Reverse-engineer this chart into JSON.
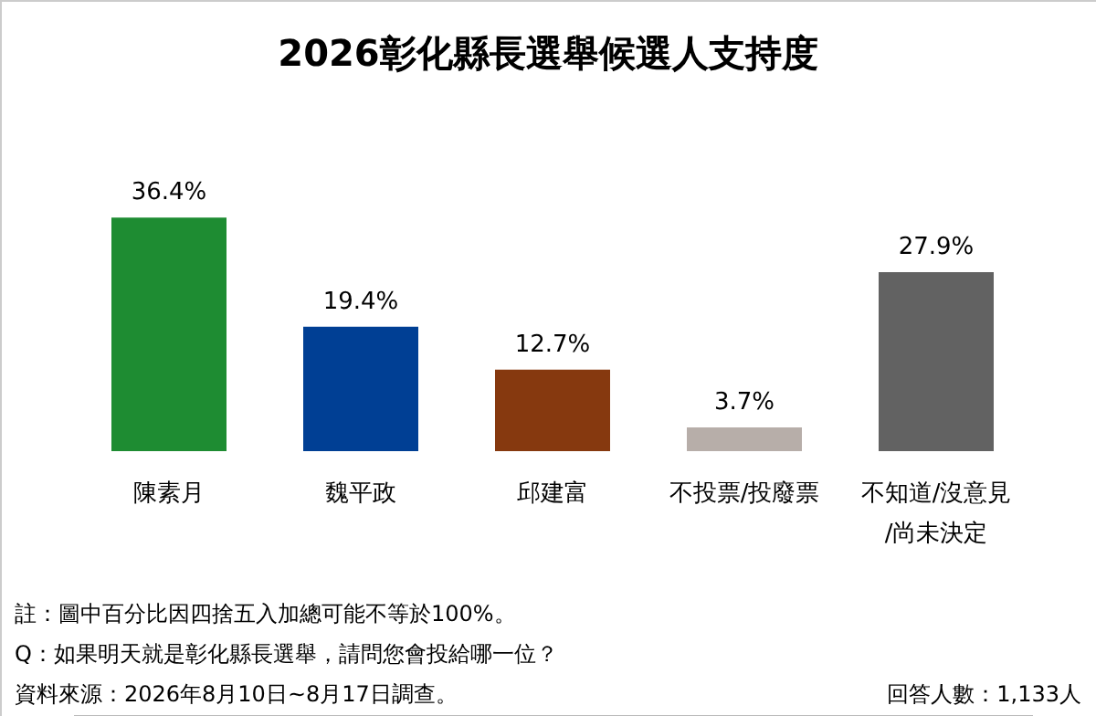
{
  "chart_data": {
    "type": "bar",
    "title": "2026彰化縣長選舉候選人支持度",
    "categories": [
      "陳素月",
      "魏平政",
      "邱建富",
      "不投票/投廢票",
      "不知道/沒意見/尚未決定"
    ],
    "values": [
      36.4,
      19.4,
      12.7,
      3.7,
      27.9
    ],
    "colors": [
      "#1e8c32",
      "#003f94",
      "#86390f",
      "#b7aea9",
      "#626262"
    ],
    "value_labels": [
      "36.4%",
      "19.4%",
      "12.7%",
      "3.7%",
      "27.9%"
    ],
    "annotations": [
      "註：圖中百分比因四捨五入加總可能不等於100%。",
      "Q：如果明天就是彰化縣長選舉，請問您會投給哪一位？",
      "資料來源：2026年8月10日~8月17日調查。",
      "回答人數：1,133人"
    ]
  }
}
